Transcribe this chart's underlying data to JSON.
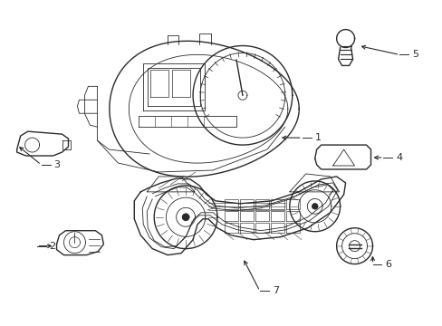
{
  "bg_color": "#ffffff",
  "line_color": "#2a2a2a",
  "fig_width": 4.89,
  "fig_height": 3.6,
  "dpi": 100,
  "img_extent": [
    0,
    489,
    0,
    360
  ]
}
